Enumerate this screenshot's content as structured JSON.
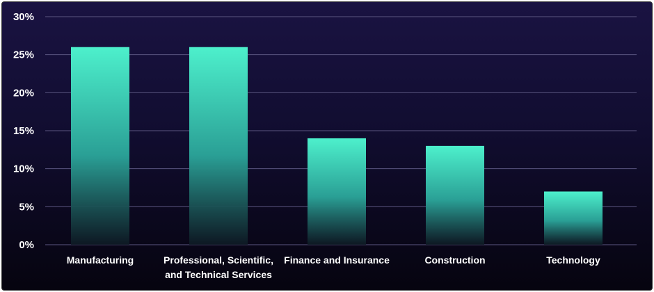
{
  "chart_data": {
    "type": "bar",
    "categories": [
      [
        "Manufacturing"
      ],
      [
        "Professional, Scientific,",
        "and Technical Services"
      ],
      [
        "Finance and Insurance"
      ],
      [
        "Construction"
      ],
      [
        "Technology"
      ]
    ],
    "values": [
      26,
      26,
      14,
      13,
      7
    ],
    "ylim": [
      0,
      30
    ],
    "yticks": [
      "0%",
      "5%",
      "10%",
      "15%",
      "20%",
      "25%",
      "30%"
    ],
    "grid": true,
    "legend": "none",
    "title": "",
    "xlabel": "",
    "ylabel": "",
    "bar_color_top": "#4df0cc",
    "bar_color_bottom": "#0e1a24",
    "grid_color": "#5a5580",
    "background_top": "#1a1342",
    "background_bottom": "#06040f"
  }
}
